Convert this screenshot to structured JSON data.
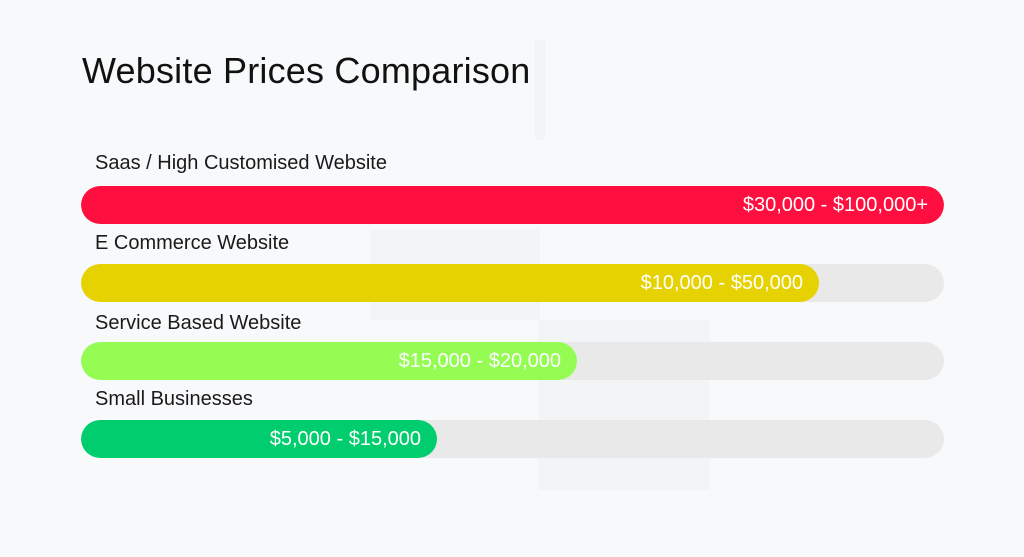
{
  "chart_data": {
    "type": "bar",
    "orientation": "horizontal",
    "title": "Website Prices Comparison",
    "xlabel": "",
    "ylabel": "",
    "grid": false,
    "legend": "none",
    "track_color": "#e9e9e9",
    "bars": [
      {
        "label": "Saas / High Customised Website",
        "value_label": "$30,000 - $100,000+",
        "fill": 1.0,
        "color": "#ff0f3f"
      },
      {
        "label": "E Commerce Website",
        "value_label": "$10,000 - $50,000",
        "fill": 0.855,
        "color": "#e6d200"
      },
      {
        "label": "Service Based Website",
        "value_label": "$15,000 - $20,000",
        "fill": 0.575,
        "color": "#95fc54"
      },
      {
        "label": "Small Businesses",
        "value_label": "$5,000 - $15,000",
        "fill": 0.413,
        "color": "#00ce6e"
      }
    ]
  }
}
